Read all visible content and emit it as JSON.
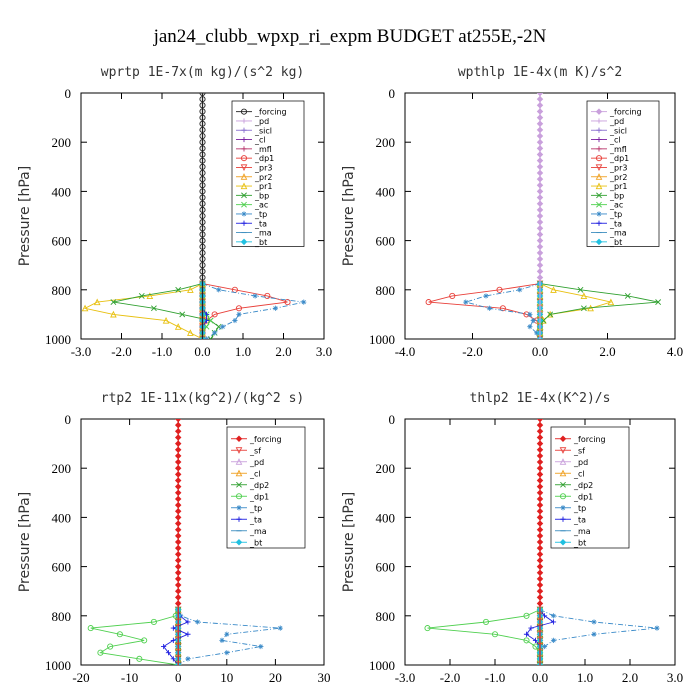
{
  "title": "jan24_clubb_wpxp_ri_expm  BUDGET at255E,-2N",
  "colors": {
    "forcing": "#222222",
    "pd": "#c9a0dc",
    "sicl": "#8a70d0",
    "cl": "#7a1fa0",
    "mfl": "#b8336a",
    "dp1": "#e8403a",
    "pr3": "#e8403a",
    "pr2": "#f0a020",
    "pr1": "#e8c010",
    "bp": "#30a030",
    "ac": "#50d050",
    "tp": "#3a8ac8",
    "ta": "#2020e0",
    "ma": "#4090c0",
    "bt": "#20c0e0",
    "sf": "#e8403a",
    "dp2": "#30a030",
    "red": "#e02020"
  },
  "chart_data": [
    {
      "type": "line",
      "title": "wprtp  1E-7x(m kg)/(s^2 kg)",
      "xlabel": "",
      "ylabel": "Pressure [hPa]",
      "xlim": [
        -3.0,
        3.0
      ],
      "ylim": [
        1000,
        0
      ],
      "xticks": [
        "-3.0",
        "-2.0",
        "-1.0",
        "0.0",
        "1.0",
        "2.0",
        "3.0"
      ],
      "yticks": [
        "0",
        "200",
        "400",
        "600",
        "800",
        "1000"
      ],
      "legend_position": "top-right",
      "pressure": [
        775,
        800,
        825,
        850,
        875,
        900,
        925,
        950,
        975,
        1000
      ],
      "series": [
        {
          "name": "_forcing",
          "color_key": "forcing",
          "marker": "o",
          "values": [
            0,
            0,
            0,
            0,
            0,
            0,
            0,
            0,
            0,
            0
          ]
        },
        {
          "name": "_pd",
          "color_key": "pd",
          "marker": "+",
          "values": [
            0,
            0,
            0,
            0,
            0,
            0,
            0,
            0,
            0,
            0
          ]
        },
        {
          "name": "_sicl",
          "color_key": "sicl",
          "marker": "+",
          "values": [
            0,
            0,
            0,
            0,
            0,
            0,
            0,
            0,
            0,
            0
          ]
        },
        {
          "name": "_cl",
          "color_key": "cl",
          "marker": "+",
          "values": [
            0,
            0,
            0,
            0,
            0,
            0,
            0,
            0,
            0,
            0
          ]
        },
        {
          "name": "_mfl",
          "color_key": "mfl",
          "marker": "+",
          "values": [
            0,
            0,
            0,
            0,
            0,
            0,
            0,
            0,
            0,
            0
          ]
        },
        {
          "name": "_dp1",
          "color_key": "dp1",
          "marker": "o",
          "values": [
            0,
            0.8,
            1.6,
            2.1,
            0.9,
            0.3,
            0.1,
            0,
            0,
            0
          ]
        },
        {
          "name": "_pr3",
          "color_key": "pr3",
          "marker": "v",
          "values": [
            0,
            0,
            0,
            0,
            0,
            0,
            0,
            0,
            0,
            0
          ]
        },
        {
          "name": "_pr2",
          "color_key": "pr2",
          "marker": "^",
          "values": [
            0,
            0,
            0,
            0,
            0,
            0,
            0,
            0,
            0,
            0
          ]
        },
        {
          "name": "_pr1",
          "color_key": "pr1",
          "marker": "^",
          "values": [
            0,
            -0.3,
            -1.3,
            -2.6,
            -2.9,
            -2.2,
            -0.9,
            -0.6,
            -0.3,
            0
          ]
        },
        {
          "name": "_bp",
          "color_key": "bp",
          "marker": "x",
          "values": [
            0,
            -0.6,
            -1.5,
            -2.2,
            -1.2,
            -0.5,
            0.2,
            0.4,
            0.3,
            0.2
          ]
        },
        {
          "name": "_ac",
          "color_key": "ac",
          "marker": "x",
          "values": [
            0,
            0,
            0,
            0,
            0,
            0.1,
            0.2,
            0.1,
            0,
            0
          ]
        },
        {
          "name": "_tp",
          "color_key": "tp",
          "marker": "*",
          "values": [
            0,
            0.4,
            1.3,
            2.5,
            1.8,
            0.9,
            0.8,
            0.5,
            0.3,
            0.1
          ]
        },
        {
          "name": "_ta",
          "color_key": "ta",
          "marker": "+",
          "values": [
            0,
            0,
            0,
            0,
            0,
            0.1,
            0.1,
            0,
            0,
            0
          ]
        },
        {
          "name": "_ma",
          "color_key": "ma",
          "marker": "-",
          "values": [
            0,
            0,
            0,
            0,
            0,
            0,
            0,
            0,
            0,
            0
          ]
        },
        {
          "name": "_bt",
          "color_key": "bt",
          "marker": "diamond",
          "values": [
            0,
            0,
            0,
            0,
            0,
            0,
            0,
            0,
            0,
            0
          ]
        }
      ]
    },
    {
      "type": "line",
      "title": "wpthlp  1E-4x(m K)/s^2",
      "xlabel": "",
      "ylabel": "Pressure [hPa]",
      "xlim": [
        -4.0,
        4.0
      ],
      "ylim": [
        1000,
        0
      ],
      "xticks": [
        "-4.0",
        "-2.0",
        "0.0",
        "2.0",
        "4.0"
      ],
      "yticks": [
        "0",
        "200",
        "400",
        "600",
        "800",
        "1000"
      ],
      "legend_position": "top-right",
      "pressure": [
        775,
        800,
        825,
        850,
        875,
        900,
        925,
        950,
        975,
        1000
      ],
      "series": [
        {
          "name": "_forcing",
          "color_key": "pd",
          "marker": "diamond",
          "values": [
            0,
            0,
            0,
            0,
            0,
            0,
            0,
            0,
            0,
            0
          ]
        },
        {
          "name": "_pd",
          "color_key": "pd",
          "marker": "+",
          "values": [
            0,
            0,
            0,
            0,
            0,
            0,
            0,
            0,
            0,
            0
          ]
        },
        {
          "name": "_sicl",
          "color_key": "sicl",
          "marker": "+",
          "values": [
            0,
            0,
            0,
            0,
            0,
            0,
            0,
            0,
            0,
            0
          ]
        },
        {
          "name": "_cl",
          "color_key": "cl",
          "marker": "+",
          "values": [
            0,
            0,
            0,
            0,
            0,
            0,
            0,
            0,
            0,
            0
          ]
        },
        {
          "name": "_mfl",
          "color_key": "mfl",
          "marker": "+",
          "values": [
            0,
            0,
            0,
            0,
            0,
            0,
            0,
            0,
            0,
            0
          ]
        },
        {
          "name": "_dp1",
          "color_key": "dp1",
          "marker": "o",
          "values": [
            0,
            -1.2,
            -2.6,
            -3.3,
            -1.1,
            -0.4,
            -0.1,
            0,
            0,
            0
          ]
        },
        {
          "name": "_pr3",
          "color_key": "pr3",
          "marker": "v",
          "values": [
            0,
            0,
            0,
            0,
            0,
            0,
            0,
            0,
            0,
            0
          ]
        },
        {
          "name": "_pr2",
          "color_key": "pr2",
          "marker": "^",
          "values": [
            0,
            0,
            0,
            0,
            0,
            0,
            0,
            0,
            0,
            0
          ]
        },
        {
          "name": "_pr1",
          "color_key": "pr1",
          "marker": "^",
          "values": [
            0,
            0.4,
            1.3,
            2.1,
            1.5,
            0.3,
            0.1,
            0,
            0,
            0
          ]
        },
        {
          "name": "_bp",
          "color_key": "bp",
          "marker": "x",
          "values": [
            0,
            1.2,
            2.6,
            3.5,
            1.3,
            0.3,
            0.1,
            0,
            0,
            0
          ]
        },
        {
          "name": "_ac",
          "color_key": "ac",
          "marker": "x",
          "values": [
            0,
            0,
            0,
            0,
            0,
            0,
            0,
            0,
            0,
            0
          ]
        },
        {
          "name": "_tp",
          "color_key": "tp",
          "marker": "*",
          "values": [
            0,
            -0.6,
            -1.6,
            -2.2,
            -1.5,
            -0.3,
            -0.2,
            -0.3,
            -0.1,
            0
          ]
        },
        {
          "name": "_ta",
          "color_key": "ta",
          "marker": "+",
          "values": [
            0,
            0,
            0,
            0,
            0,
            0,
            0,
            0,
            0,
            0
          ]
        },
        {
          "name": "_ma",
          "color_key": "ma",
          "marker": "-",
          "values": [
            0,
            0,
            0,
            0,
            0,
            0,
            0,
            0,
            0,
            0
          ]
        },
        {
          "name": "_bt",
          "color_key": "bt",
          "marker": "diamond",
          "values": [
            0,
            0,
            0,
            0,
            0,
            0,
            0,
            0,
            0,
            0
          ]
        }
      ]
    },
    {
      "type": "line",
      "title": "rtp2  1E-11x(kg^2)/(kg^2 s)",
      "xlabel": "",
      "ylabel": "Pressure [hPa]",
      "xlim": [
        -20,
        30
      ],
      "ylim": [
        1000,
        0
      ],
      "xticks": [
        "-20",
        "-10",
        "0",
        "10",
        "20",
        "30"
      ],
      "yticks": [
        "0",
        "200",
        "400",
        "600",
        "800",
        "1000"
      ],
      "legend_position": "top-right",
      "pressure": [
        775,
        800,
        825,
        850,
        875,
        900,
        925,
        950,
        975,
        1000
      ],
      "series": [
        {
          "name": "_forcing",
          "color_key": "red",
          "marker": "diamond",
          "values": [
            0,
            0,
            0,
            0,
            0,
            0,
            0,
            0,
            0,
            0
          ]
        },
        {
          "name": "_sf",
          "color_key": "sf",
          "marker": "v",
          "values": [
            0,
            0,
            0,
            0,
            0,
            0,
            0,
            0,
            0,
            0
          ]
        },
        {
          "name": "_pd",
          "color_key": "pd",
          "marker": "^",
          "values": [
            0,
            0,
            0,
            0,
            0,
            0,
            0,
            0,
            0,
            0
          ]
        },
        {
          "name": "_cl",
          "color_key": "pr2",
          "marker": "^",
          "values": [
            0,
            0,
            0,
            0,
            0,
            0,
            0,
            0,
            0,
            0
          ]
        },
        {
          "name": "_dp2",
          "color_key": "dp2",
          "marker": "x",
          "values": [
            0,
            0,
            0,
            0,
            0,
            0,
            0,
            0,
            0,
            0
          ]
        },
        {
          "name": "_dp1",
          "color_key": "ac",
          "marker": "o",
          "values": [
            0,
            -0.5,
            -5,
            -18,
            -12,
            -7,
            -14,
            -16,
            -8,
            0
          ]
        },
        {
          "name": "_tp",
          "color_key": "tp",
          "marker": "*",
          "values": [
            0,
            0.5,
            4,
            21,
            10,
            9,
            17,
            10,
            2,
            0
          ]
        },
        {
          "name": "_ta",
          "color_key": "ta",
          "marker": "+",
          "values": [
            0,
            0.3,
            2,
            -1,
            2,
            -1,
            -3,
            -2,
            -1,
            0
          ]
        },
        {
          "name": "_ma",
          "color_key": "ma",
          "marker": "-",
          "values": [
            0,
            0,
            0,
            0,
            0,
            0,
            0,
            0,
            0,
            0
          ]
        },
        {
          "name": "_bt",
          "color_key": "bt",
          "marker": "diamond",
          "values": [
            0,
            0,
            0,
            0,
            0,
            0,
            0,
            0,
            0,
            0
          ]
        }
      ]
    },
    {
      "type": "line",
      "title": "thlp2  1E-4x(K^2)/s",
      "xlabel": "",
      "ylabel": "Pressure [hPa]",
      "xlim": [
        -3.0,
        3.0
      ],
      "ylim": [
        1000,
        0
      ],
      "xticks": [
        "-3.0",
        "-2.0",
        "-1.0",
        "0.0",
        "1.0",
        "2.0",
        "3.0"
      ],
      "yticks": [
        "0",
        "200",
        "400",
        "600",
        "800",
        "1000"
      ],
      "legend_position": "top-right",
      "pressure": [
        775,
        800,
        825,
        850,
        875,
        900,
        925,
        950,
        975,
        1000
      ],
      "series": [
        {
          "name": "_forcing",
          "color_key": "red",
          "marker": "diamond",
          "values": [
            0,
            0,
            0,
            0,
            0,
            0,
            0,
            0,
            0,
            0
          ]
        },
        {
          "name": "_sf",
          "color_key": "sf",
          "marker": "v",
          "values": [
            0,
            0,
            0,
            0,
            0,
            0,
            0,
            0,
            0,
            0
          ]
        },
        {
          "name": "_pd",
          "color_key": "pd",
          "marker": "^",
          "values": [
            0,
            0,
            0,
            0,
            0,
            0,
            0,
            0,
            0,
            0
          ]
        },
        {
          "name": "_cl",
          "color_key": "pr2",
          "marker": "^",
          "values": [
            0,
            0,
            0,
            0,
            0,
            0,
            0,
            0,
            0,
            0
          ]
        },
        {
          "name": "_dp2",
          "color_key": "dp2",
          "marker": "x",
          "values": [
            0,
            0,
            0,
            0,
            0,
            0,
            0,
            0,
            0,
            0
          ]
        },
        {
          "name": "_dp1",
          "color_key": "ac",
          "marker": "o",
          "values": [
            0,
            -0.3,
            -1.2,
            -2.5,
            -1.0,
            -0.3,
            -0.1,
            0,
            0,
            0
          ]
        },
        {
          "name": "_tp",
          "color_key": "tp",
          "marker": "*",
          "values": [
            0,
            0.3,
            1.2,
            2.6,
            1.2,
            0.3,
            0.1,
            0,
            0,
            0
          ]
        },
        {
          "name": "_ta",
          "color_key": "ta",
          "marker": "+",
          "values": [
            0,
            0.1,
            0.3,
            -0.2,
            -0.3,
            -0.1,
            0,
            0,
            0,
            0
          ]
        },
        {
          "name": "_ma",
          "color_key": "ma",
          "marker": "-",
          "values": [
            0,
            0,
            0,
            0,
            0,
            0,
            0,
            0,
            0,
            0
          ]
        },
        {
          "name": "_bt",
          "color_key": "bt",
          "marker": "diamond",
          "values": [
            0,
            0,
            0,
            0,
            0,
            0,
            0,
            0,
            0,
            0
          ]
        }
      ]
    }
  ]
}
